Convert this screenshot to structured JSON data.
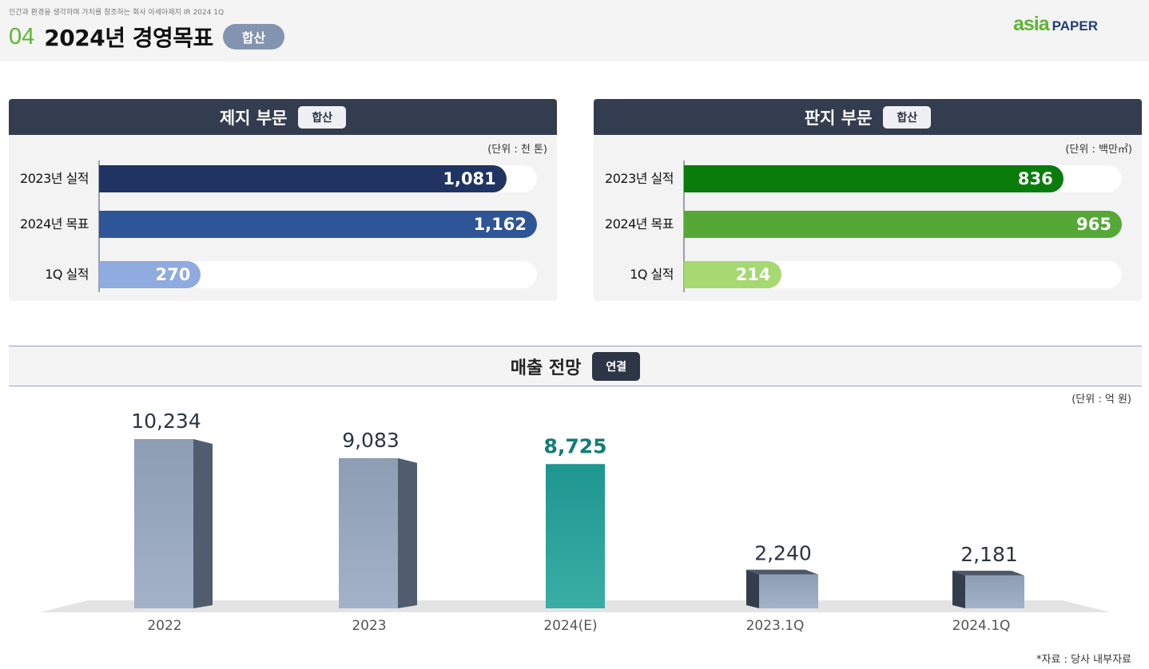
{
  "header": {
    "tagline": "인간과 환경을 생각하며 가치를 창조하는 회사 아세아제지 IR 2024 1Q",
    "section_number": "04",
    "title": "2024년 경영목표",
    "pill": "합산",
    "logo_asia": "asia",
    "logo_paper": "PAPER"
  },
  "panels": [
    {
      "title": "제지 부문",
      "badge": "합산",
      "unit": "(단위 : 천 톤)",
      "max": 1162,
      "rows": [
        {
          "label": "2023년 실적",
          "value": 1081,
          "display": "1,081",
          "color": "#1f3462"
        },
        {
          "label": "2024년 목표",
          "value": 1162,
          "display": "1,162",
          "color": "#2e5595"
        },
        {
          "label": "1Q 실적",
          "value": 270,
          "display": "270",
          "color": "#8fabdf"
        }
      ]
    },
    {
      "title": "판지 부문",
      "badge": "합산",
      "unit": "(단위 : 백만㎡)",
      "max": 965,
      "rows": [
        {
          "label": "2023년 실적",
          "value": 836,
          "display": "836",
          "color": "#0a7c0b"
        },
        {
          "label": "2024년 목표",
          "value": 965,
          "display": "965",
          "color": "#55a835"
        },
        {
          "label": "1Q 실적",
          "value": 214,
          "display": "214",
          "color": "#a6d971"
        }
      ]
    }
  ],
  "revenue": {
    "title": "매출 전망",
    "badge": "연결",
    "unit": "(단위 : 억 원)",
    "source": "*자료 : 당사 내부자료"
  },
  "chart_data": [
    {
      "type": "bar",
      "title": "제지 부문",
      "categories": [
        "2023년 실적",
        "2024년 목표",
        "1Q 실적"
      ],
      "values": [
        1081,
        1162,
        270
      ]
    },
    {
      "type": "bar",
      "title": "판지 부문",
      "categories": [
        "2023년 실적",
        "2024년 목표",
        "1Q 실적"
      ],
      "values": [
        836,
        965,
        214
      ]
    },
    {
      "type": "bar",
      "title": "매출 전망",
      "categories": [
        "2022",
        "2023",
        "2024(E)",
        "2023.1Q",
        "2024.1Q"
      ],
      "values": [
        10234,
        9083,
        8725,
        2240,
        2181
      ],
      "labels": [
        "10,234",
        "9,083",
        "8,725",
        "2,240",
        "2,181"
      ],
      "highlight_index": 2,
      "colors": {
        "base": "#94a3b9",
        "side": "#4f5d6e",
        "highlight": "#1f9990",
        "highlight_label": "#117c78"
      }
    }
  ]
}
